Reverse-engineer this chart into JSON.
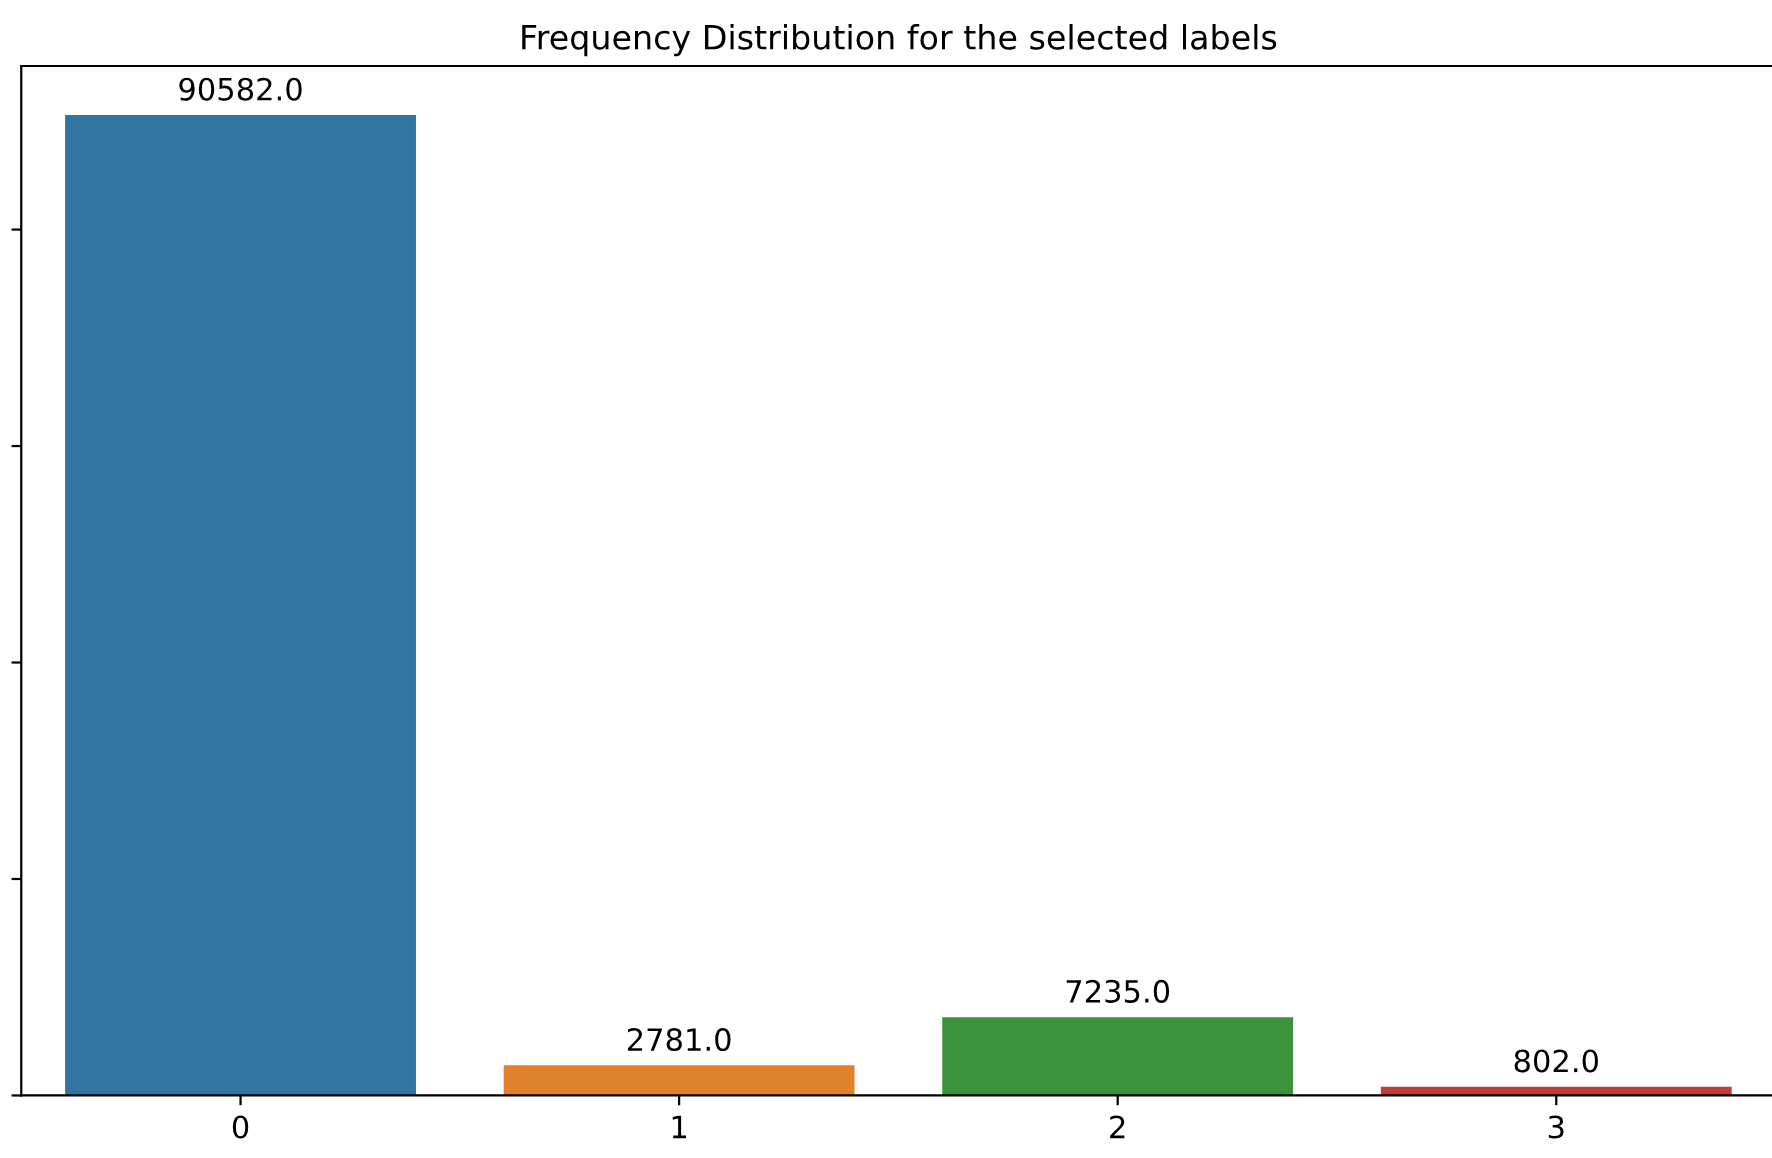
{
  "chart_data": {
    "type": "bar",
    "title": "Frequency Distribution for the selected labels",
    "categories": [
      "0",
      "1",
      "2",
      "3"
    ],
    "values": [
      90582,
      2781,
      7235,
      802
    ],
    "value_labels": [
      "90582.0",
      "2781.0",
      "7235.0",
      "802.0"
    ],
    "colors": [
      "#3274a1",
      "#e1812c",
      "#3a923a",
      "#c03d3e"
    ],
    "ylim": [
      0,
      95111
    ],
    "yticks": [
      {
        "value": 0,
        "label": null
      },
      {
        "value": 20000,
        "label": null
      },
      {
        "value": 40000,
        "label": null
      },
      {
        "value": 60000,
        "label": null
      },
      {
        "value": 80000,
        "label": null
      }
    ],
    "tick_labels": "x",
    "grid": false
  }
}
